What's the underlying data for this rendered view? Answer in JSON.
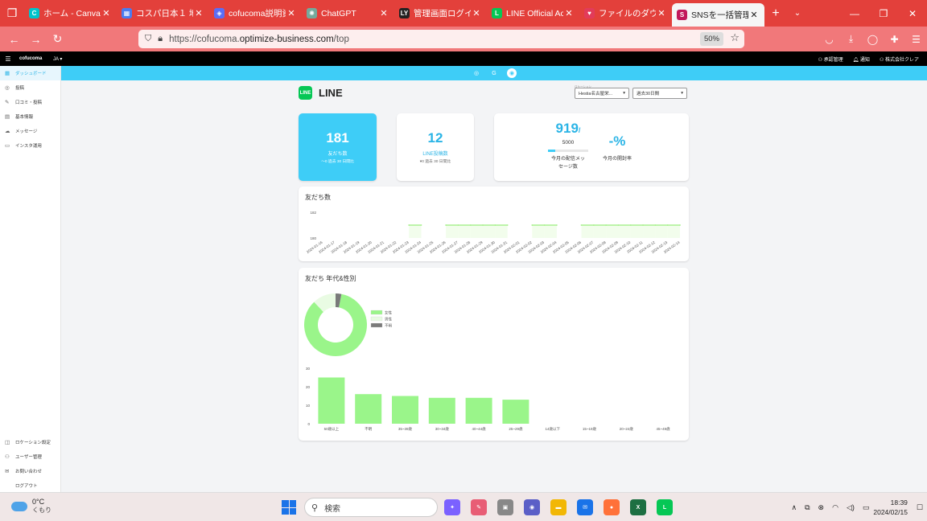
{
  "browser": {
    "tabs": [
      {
        "title": "ホーム - Canva",
        "icon": "canva-icon",
        "color": "#00c4cc",
        "glyph": "C"
      },
      {
        "title": "コスパ日本１ 地域",
        "icon": "calendar-icon",
        "color": "#4a7cf0",
        "glyph": "▦"
      },
      {
        "title": "cofucoma説明資料",
        "icon": "shield-icon",
        "color": "#5b6df5",
        "glyph": "◈"
      },
      {
        "title": "ChatGPT",
        "icon": "chatgpt-icon",
        "color": "#74aa9c",
        "glyph": "✺"
      },
      {
        "title": "管理画面ログイン |",
        "icon": "ly-icon",
        "color": "#222222",
        "glyph": "LY"
      },
      {
        "title": "LINE Official Accou",
        "icon": "line-icon",
        "color": "#06c755",
        "glyph": "L"
      },
      {
        "title": "ファイルのダウンロード",
        "icon": "heart-icon",
        "color": "#e23b5a",
        "glyph": "♥"
      },
      {
        "title": "SNSを一括管理",
        "icon": "sns-icon",
        "color": "#c2185b",
        "glyph": "S"
      }
    ],
    "url_prefix": "https://cofucoma.",
    "url_domain": "optimize-business.com",
    "url_path": "/top",
    "zoom": "50%"
  },
  "app": {
    "brand": "cofucoma",
    "lang": "JA ▾",
    "header_right": [
      "承認管理",
      "通知",
      "株式会社クレア"
    ]
  },
  "sidebar": {
    "items": [
      {
        "label": "ダッシュボード",
        "icon": "dashboard-icon",
        "glyph": "▦"
      },
      {
        "label": "投稿",
        "icon": "instagram-icon",
        "glyph": "◎"
      },
      {
        "label": "口コミ・投稿",
        "icon": "review-icon",
        "glyph": "✎"
      },
      {
        "label": "基本情報",
        "icon": "store-icon",
        "glyph": "▤"
      },
      {
        "label": "メッセージ",
        "icon": "message-icon",
        "glyph": "☁"
      },
      {
        "label": "インスタ運用",
        "icon": "grid-icon",
        "glyph": "▭"
      }
    ],
    "bottom": [
      {
        "label": "ロケーション設定",
        "icon": "location-icon",
        "glyph": "◫"
      },
      {
        "label": "ユーザー管理",
        "icon": "user-icon",
        "glyph": "⚇"
      },
      {
        "label": "お問い合わせ",
        "icon": "mail-icon",
        "glyph": "✉"
      },
      {
        "label": "ログアウト",
        "icon": "logout-icon",
        "glyph": ""
      }
    ]
  },
  "page": {
    "title": "LINE",
    "location_label": "ロケーション",
    "location_value": "Hestia名古屋栄...",
    "period_value": "過去30日間"
  },
  "stats": {
    "friends": {
      "value": "181",
      "label": "友だち数",
      "sub": "〜0 過去 30 日間比"
    },
    "posts": {
      "value": "12",
      "label": "LINE投稿数",
      "sub": "▾0 過去 30 日間比"
    },
    "delivered": {
      "value": "919",
      "sep": "/",
      "limit": "5000",
      "label1": "今月の配信メッ",
      "label2": "セージ数",
      "fraction": 0.184
    },
    "open_rate": {
      "value": "-%",
      "label": "今月の開封率"
    }
  },
  "friends_chart": {
    "title": "友だち数",
    "chart_data": {
      "type": "line",
      "ylim": [
        180,
        182
      ],
      "y_ticks": [
        "182",
        "180"
      ],
      "x": [
        "2024-01-16",
        "2024-01-17",
        "2024-01-18",
        "2024-01-19",
        "2024-01-20",
        "2024-01-21",
        "2024-01-22",
        "2024-01-23",
        "2024-01-24",
        "2024-01-25",
        "2024-01-26",
        "2024-01-27",
        "2024-01-28",
        "2024-01-29",
        "2024-01-30",
        "2024-01-31",
        "2024-02-01",
        "2024-02-02",
        "2024-02-03",
        "2024-02-04",
        "2024-02-05",
        "2024-02-06",
        "2024-02-07",
        "2024-02-08",
        "2024-02-09",
        "2024-02-10",
        "2024-02-11",
        "2024-02-12",
        "2024-02-13",
        "2024-02-14"
      ],
      "values": [
        null,
        null,
        null,
        null,
        null,
        null,
        null,
        181,
        181,
        null,
        181,
        181,
        181,
        181,
        181,
        181,
        null,
        181,
        181,
        181,
        null,
        181,
        181,
        181,
        181,
        181,
        181,
        181,
        181,
        181
      ],
      "color": "#a6f08a"
    }
  },
  "demographics": {
    "title": "友だち 年代&性別",
    "gender_chart": {
      "type": "pie",
      "categories": [
        "女性",
        "男性",
        "不明"
      ],
      "values": [
        85,
        12,
        3
      ],
      "colors": [
        "#9af58a",
        "#e9fbe3",
        "#7a7a7a"
      ]
    },
    "age_chart": {
      "type": "bar",
      "categories": [
        "50歳以上",
        "不明",
        "35~39歳",
        "30~34歳",
        "40~44歳",
        "25~29歳",
        "14歳以下",
        "15~19歳",
        "20~24歳",
        "45~49歳"
      ],
      "values": [
        25,
        16,
        15,
        14,
        14,
        13,
        0,
        0,
        0,
        0
      ],
      "ylim": [
        0,
        30
      ],
      "y_ticks": [
        "30",
        "20",
        "10",
        "0"
      ],
      "color": "#9af58a"
    }
  },
  "taskbar": {
    "temp": "0°C",
    "weather": "くもり",
    "search": "検索",
    "time": "18:39",
    "date": "2024/02/15",
    "apps": [
      {
        "name": "copilot-app",
        "color": "#7b61ff",
        "glyph": "✦"
      },
      {
        "name": "notes-app",
        "color": "#e85d75",
        "glyph": "✎"
      },
      {
        "name": "terminal-app",
        "color": "#888888",
        "glyph": "▣"
      },
      {
        "name": "teams-app",
        "color": "#5b5fc7",
        "glyph": "◉"
      },
      {
        "name": "explorer-app",
        "color": "#f2b705",
        "glyph": "▬"
      },
      {
        "name": "mail-app",
        "color": "#1a73e8",
        "glyph": "✉"
      },
      {
        "name": "firefox-app",
        "color": "#ff7139",
        "glyph": "●"
      },
      {
        "name": "excel-app",
        "color": "#1d6f42",
        "glyph": "X"
      },
      {
        "name": "line-app",
        "color": "#06c755",
        "glyph": "L"
      }
    ]
  }
}
